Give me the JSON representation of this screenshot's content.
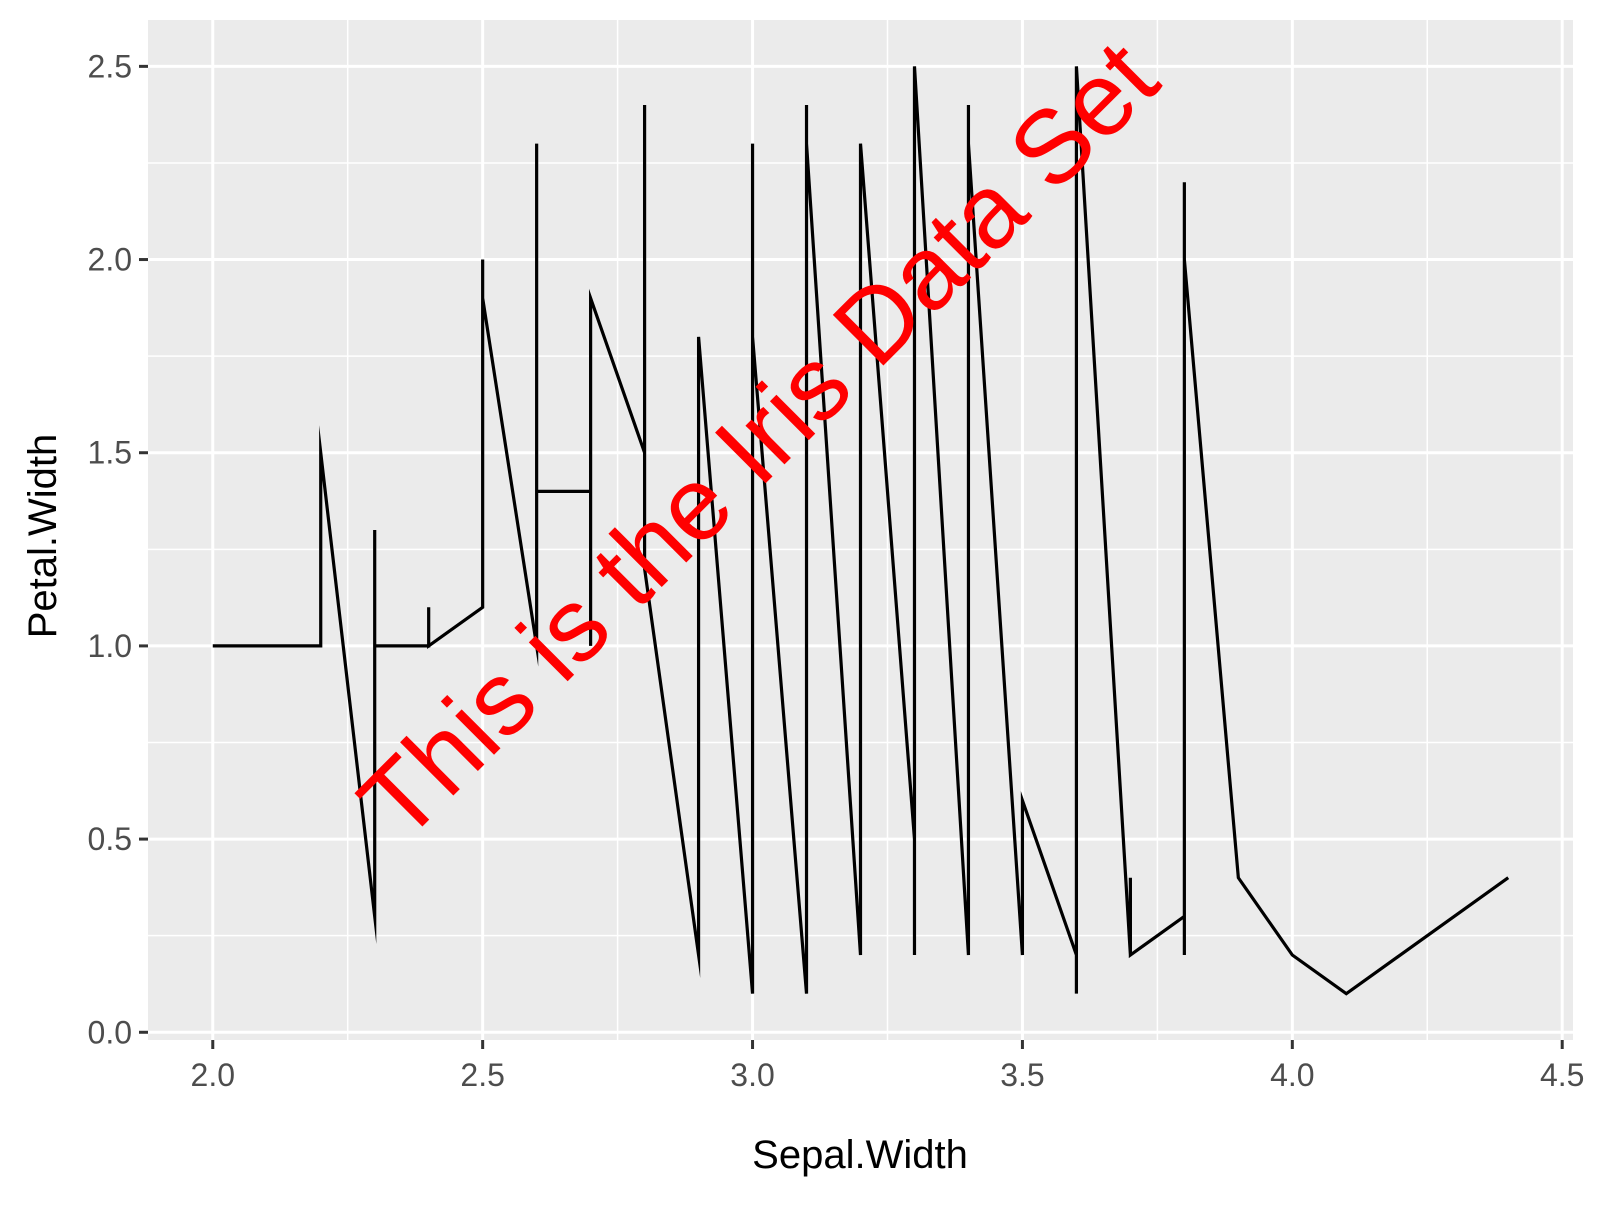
{
  "chart_data": {
    "type": "line",
    "xlabel": "Sepal.Width",
    "ylabel": "Petal.Width",
    "xlim": [
      1.88,
      4.52
    ],
    "ylim": [
      -0.02,
      2.62
    ],
    "x_ticks": [
      2.0,
      2.5,
      3.0,
      3.5,
      4.0,
      4.5
    ],
    "x_tick_labels": [
      "2.0",
      "2.5",
      "3.0",
      "3.5",
      "4.0",
      "4.5"
    ],
    "y_ticks": [
      0.0,
      0.5,
      1.0,
      1.5,
      2.0,
      2.5
    ],
    "y_tick_labels": [
      "0.0",
      "0.5",
      "1.0",
      "1.5",
      "2.0",
      "2.5"
    ],
    "grid": true,
    "annotation": "This is the Iris Data Set",
    "colors": {
      "panel": "#EBEBEB",
      "grid": "#FFFFFF",
      "line": "#000000",
      "annotation": "#FF0000",
      "tick_text": "#4D4D4D",
      "axis_title": "#000000"
    },
    "series": [
      {
        "points": [
          [
            2.0,
            1.0
          ],
          [
            2.2,
            1.0
          ],
          [
            2.2,
            1.5
          ],
          [
            2.3,
            0.3
          ],
          [
            2.3,
            1.3
          ],
          [
            2.3,
            1.0
          ],
          [
            2.4,
            1.0
          ],
          [
            2.4,
            1.1
          ],
          [
            2.4,
            1.0
          ],
          [
            2.5,
            1.1
          ],
          [
            2.5,
            2.0
          ],
          [
            2.5,
            1.9
          ],
          [
            2.6,
            1.0
          ],
          [
            2.6,
            2.3
          ],
          [
            2.6,
            1.4
          ],
          [
            2.7,
            1.4
          ],
          [
            2.7,
            1.0
          ],
          [
            2.7,
            1.9
          ],
          [
            2.8,
            1.5
          ],
          [
            2.8,
            2.4
          ],
          [
            2.8,
            1.2
          ],
          [
            2.9,
            0.2
          ],
          [
            2.9,
            1.8
          ],
          [
            3.0,
            0.1
          ],
          [
            3.0,
            2.3
          ],
          [
            3.0,
            1.8
          ],
          [
            3.1,
            0.1
          ],
          [
            3.1,
            2.4
          ],
          [
            3.1,
            2.3
          ],
          [
            3.2,
            0.2
          ],
          [
            3.2,
            2.3
          ],
          [
            3.2,
            2.3
          ],
          [
            3.3,
            0.5
          ],
          [
            3.3,
            0.2
          ],
          [
            3.3,
            2.5
          ],
          [
            3.4,
            0.2
          ],
          [
            3.4,
            2.4
          ],
          [
            3.4,
            2.3
          ],
          [
            3.5,
            0.2
          ],
          [
            3.5,
            0.6
          ],
          [
            3.6,
            0.2
          ],
          [
            3.6,
            0.1
          ],
          [
            3.6,
            2.5
          ],
          [
            3.7,
            0.2
          ],
          [
            3.7,
            0.4
          ],
          [
            3.7,
            0.2
          ],
          [
            3.8,
            0.3
          ],
          [
            3.8,
            0.2
          ],
          [
            3.8,
            2.2
          ],
          [
            3.8,
            2.0
          ],
          [
            3.9,
            0.4
          ],
          [
            4.0,
            0.2
          ],
          [
            4.1,
            0.1
          ],
          [
            4.4,
            0.4
          ]
        ]
      }
    ]
  }
}
